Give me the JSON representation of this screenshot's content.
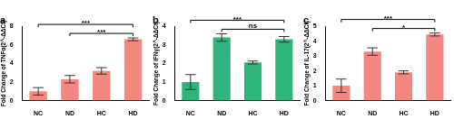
{
  "chart_data": [
    {
      "type": "bar",
      "title": "a",
      "y_label": "Fold Change of TNFα(2^-ΔΔCt)",
      "categories": [
        "NC",
        "ND",
        "HC",
        "HD"
      ],
      "values": [
        1.0,
        2.3,
        3.2,
        6.6
      ],
      "errors": [
        0.4,
        0.4,
        0.35,
        0.15
      ],
      "color": "#f4877f",
      "ylim": [
        0,
        8
      ],
      "yticks": [
        0,
        2,
        4,
        6,
        8
      ],
      "grid": false,
      "annotations": [
        {
          "from": "NC",
          "to": "HD",
          "text": "***"
        },
        {
          "from": "ND",
          "to": "HD",
          "text": "***"
        }
      ]
    },
    {
      "type": "bar",
      "title": "b",
      "y_label": "Fold Change of IFNγ(2^-ΔΔCt)",
      "categories": [
        "NC",
        "ND",
        "HC",
        "HD"
      ],
      "values": [
        1.0,
        3.4,
        2.05,
        3.3
      ],
      "errors": [
        0.4,
        0.2,
        0.08,
        0.15
      ],
      "color": "#2fb57c",
      "ylim": [
        0,
        4
      ],
      "yticks": [
        0,
        1,
        2,
        3,
        4
      ],
      "grid": false,
      "annotations": [
        {
          "from": "NC",
          "to": "HD",
          "text": "***"
        },
        {
          "from": "ND",
          "to": "HD",
          "text": "ns"
        }
      ]
    },
    {
      "type": "bar",
      "title": "c",
      "y_label": "Fold Change of IL-17(2^-ΔΔCt)",
      "categories": [
        "NC",
        "ND",
        "HC",
        "HD"
      ],
      "values": [
        1.0,
        3.3,
        1.9,
        4.45
      ],
      "errors": [
        0.45,
        0.25,
        0.1,
        0.1
      ],
      "color": "#f4877f",
      "ylim": [
        0,
        5
      ],
      "yticks": [
        0,
        1,
        2,
        3,
        4,
        5
      ],
      "grid": false,
      "annotations": [
        {
          "from": "NC",
          "to": "HD",
          "text": "***"
        },
        {
          "from": "ND",
          "to": "HD",
          "text": "*"
        }
      ]
    }
  ]
}
